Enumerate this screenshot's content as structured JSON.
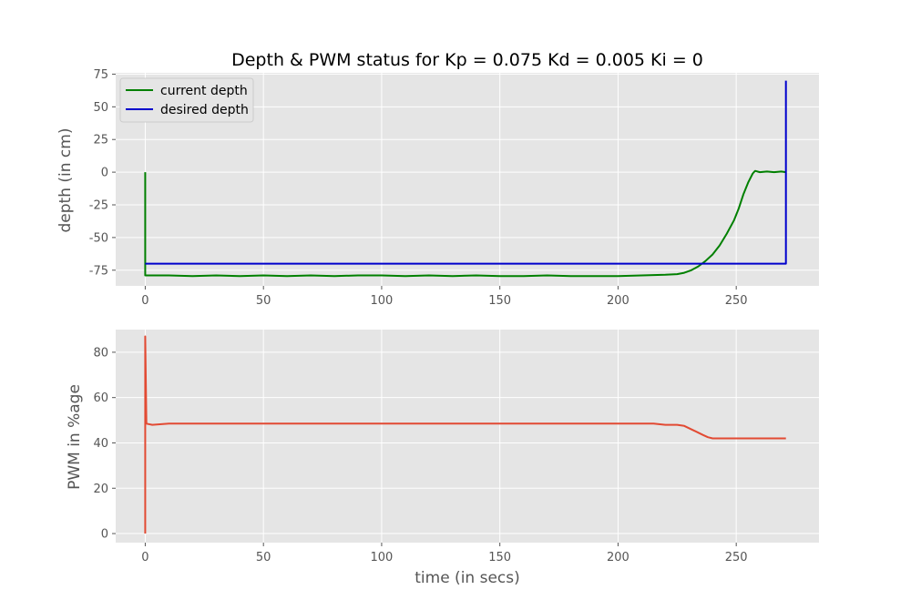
{
  "figure": {
    "title": "Depth & PWM status for Kp = 0.075 Kd = 0.005 Ki = 0",
    "colors": {
      "background": "#ffffff",
      "panel": "#e5e5e5",
      "grid": "#ffffff",
      "tick_text": "#555555"
    }
  },
  "chart_data": [
    {
      "type": "line",
      "title": "Depth & PWM status for Kp = 0.075 Kd = 0.005 Ki = 0",
      "xlabel": "",
      "ylabel": "depth (in cm)",
      "xlim": [
        -12.5,
        285
      ],
      "ylim": [
        -87,
        76
      ],
      "xticks": [
        0,
        50,
        100,
        150,
        200,
        250
      ],
      "yticks": [
        -75,
        -50,
        -25,
        0,
        25,
        50,
        75
      ],
      "grid": true,
      "legend": "top-left",
      "series": [
        {
          "name": "current depth",
          "color": "#008000",
          "x": [
            0,
            0,
            1,
            10,
            20,
            30,
            40,
            50,
            60,
            70,
            80,
            90,
            100,
            110,
            120,
            130,
            140,
            150,
            160,
            170,
            180,
            190,
            200,
            210,
            220,
            225,
            228,
            231,
            234,
            237,
            240,
            243,
            246,
            249,
            251,
            253,
            255,
            257,
            258,
            260,
            263,
            266,
            269,
            271
          ],
          "y": [
            0,
            -79,
            -79,
            -79,
            -79.5,
            -79,
            -79.5,
            -79,
            -79.5,
            -79,
            -79.5,
            -79,
            -79,
            -79.5,
            -79,
            -79.5,
            -79,
            -79.5,
            -79.5,
            -79,
            -79.5,
            -79.5,
            -79.5,
            -79,
            -78.5,
            -78,
            -77,
            -75,
            -72,
            -68,
            -63,
            -56,
            -47,
            -37,
            -28,
            -17,
            -8,
            -1,
            1,
            0,
            0.5,
            0,
            0.5,
            0
          ]
        },
        {
          "name": "desired depth",
          "color": "#0000cc",
          "x": [
            0,
            271,
            271
          ],
          "y": [
            -70,
            -70,
            70
          ]
        }
      ]
    },
    {
      "type": "line",
      "xlabel": "time (in secs)",
      "ylabel": "PWM in %age",
      "xlim": [
        -12.5,
        285
      ],
      "ylim": [
        -4,
        90
      ],
      "xticks": [
        0,
        50,
        100,
        150,
        200,
        250
      ],
      "yticks": [
        0,
        20,
        40,
        60,
        80
      ],
      "grid": true,
      "series": [
        {
          "color": "#e24a33",
          "x": [
            0,
            0,
            0.5,
            3,
            10,
            20,
            30,
            40,
            50,
            60,
            70,
            80,
            90,
            100,
            110,
            120,
            130,
            140,
            150,
            160,
            170,
            180,
            190,
            200,
            210,
            215,
            220,
            225,
            228,
            230,
            232,
            234,
            236,
            238,
            240,
            250,
            260,
            271
          ],
          "y": [
            0,
            87,
            48.5,
            48,
            48.5,
            48.5,
            48.5,
            48.5,
            48.5,
            48.5,
            48.5,
            48.5,
            48.5,
            48.5,
            48.5,
            48.5,
            48.5,
            48.5,
            48.5,
            48.5,
            48.5,
            48.5,
            48.5,
            48.5,
            48.5,
            48.5,
            48,
            48,
            47.5,
            46.5,
            45.5,
            44.5,
            43.5,
            42.5,
            42,
            42,
            42,
            42
          ]
        }
      ]
    }
  ]
}
